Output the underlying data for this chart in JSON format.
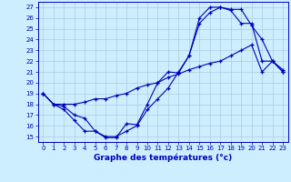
{
  "title": "Graphe des températures (°c)",
  "background_color": "#cceeff",
  "grid_color": "#aaccdd",
  "line_color": "#0000bb",
  "xlim": [
    -0.5,
    23.5
  ],
  "ylim": [
    14.5,
    27.5
  ],
  "xticks": [
    0,
    1,
    2,
    3,
    4,
    5,
    6,
    7,
    8,
    9,
    10,
    11,
    12,
    13,
    14,
    15,
    16,
    17,
    18,
    19,
    20,
    21,
    22,
    23
  ],
  "yticks": [
    15,
    16,
    17,
    18,
    19,
    20,
    21,
    22,
    23,
    24,
    25,
    26,
    27
  ],
  "series1_x": [
    0,
    1,
    2,
    3,
    4,
    5,
    6,
    7,
    8,
    9,
    10,
    11,
    12,
    13,
    14,
    15,
    16,
    17,
    18,
    19,
    20,
    21,
    22,
    23
  ],
  "series1_y": [
    19,
    18,
    17.5,
    16.5,
    15.5,
    15.5,
    14.9,
    14.9,
    16.2,
    16.1,
    18,
    20,
    21,
    20.9,
    22.5,
    26,
    27,
    27,
    26.8,
    26.8,
    25.3,
    24,
    22,
    21.2
  ],
  "series2_x": [
    0,
    1,
    2,
    3,
    4,
    5,
    6,
    7,
    8,
    9,
    10,
    11,
    12,
    13,
    14,
    15,
    16,
    17,
    18,
    19,
    20,
    21,
    22,
    23
  ],
  "series2_y": [
    19,
    18,
    17.8,
    17,
    16.7,
    15.5,
    15,
    15,
    15.5,
    16,
    17.5,
    18.5,
    19.5,
    21,
    22.5,
    25.5,
    26.5,
    27,
    26.7,
    25.5,
    25.5,
    22,
    22,
    21
  ],
  "series3_x": [
    0,
    1,
    2,
    3,
    4,
    5,
    6,
    7,
    8,
    9,
    10,
    11,
    12,
    13,
    14,
    15,
    16,
    17,
    18,
    19,
    20,
    21,
    22,
    23
  ],
  "series3_y": [
    19,
    18,
    18,
    18,
    18.2,
    18.5,
    18.5,
    18.8,
    19,
    19.5,
    19.8,
    20,
    20.5,
    20.8,
    21.2,
    21.5,
    21.8,
    22,
    22.5,
    23,
    23.5,
    21,
    22,
    21
  ],
  "xlabel_fontsize": 6.5,
  "tick_fontsize": 5.0
}
